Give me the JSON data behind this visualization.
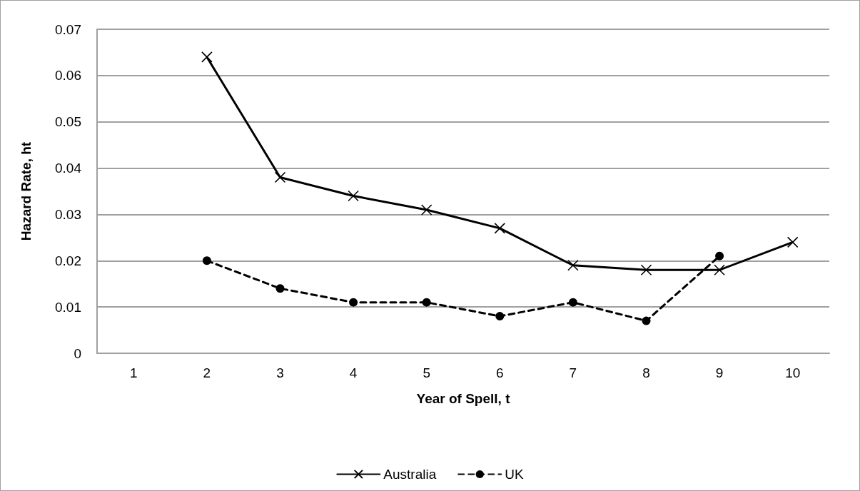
{
  "chart_data": {
    "type": "line",
    "xlabel": "Year of Spell, t",
    "ylabel": "Hazard Rate, ht",
    "categories": [
      "1",
      "2",
      "3",
      "4",
      "5",
      "6",
      "7",
      "8",
      "9",
      "10"
    ],
    "series": [
      {
        "name": "Australia",
        "color": "#000000",
        "marker": "cross",
        "line_style": "solid",
        "values": [
          null,
          0.064,
          0.038,
          0.034,
          0.031,
          0.027,
          0.019,
          0.018,
          0.018,
          0.024
        ]
      },
      {
        "name": "UK",
        "color": "#000000",
        "marker": "circle",
        "line_style": "dashed",
        "values": [
          null,
          0.02,
          0.014,
          0.011,
          0.011,
          0.008,
          0.011,
          0.007,
          0.021,
          null
        ]
      }
    ],
    "ylim": [
      0,
      0.07
    ],
    "yticks": [
      0,
      0.01,
      0.02,
      0.03,
      0.04,
      0.05,
      0.06,
      0.07
    ],
    "grid": "y",
    "legend": "bottom"
  }
}
